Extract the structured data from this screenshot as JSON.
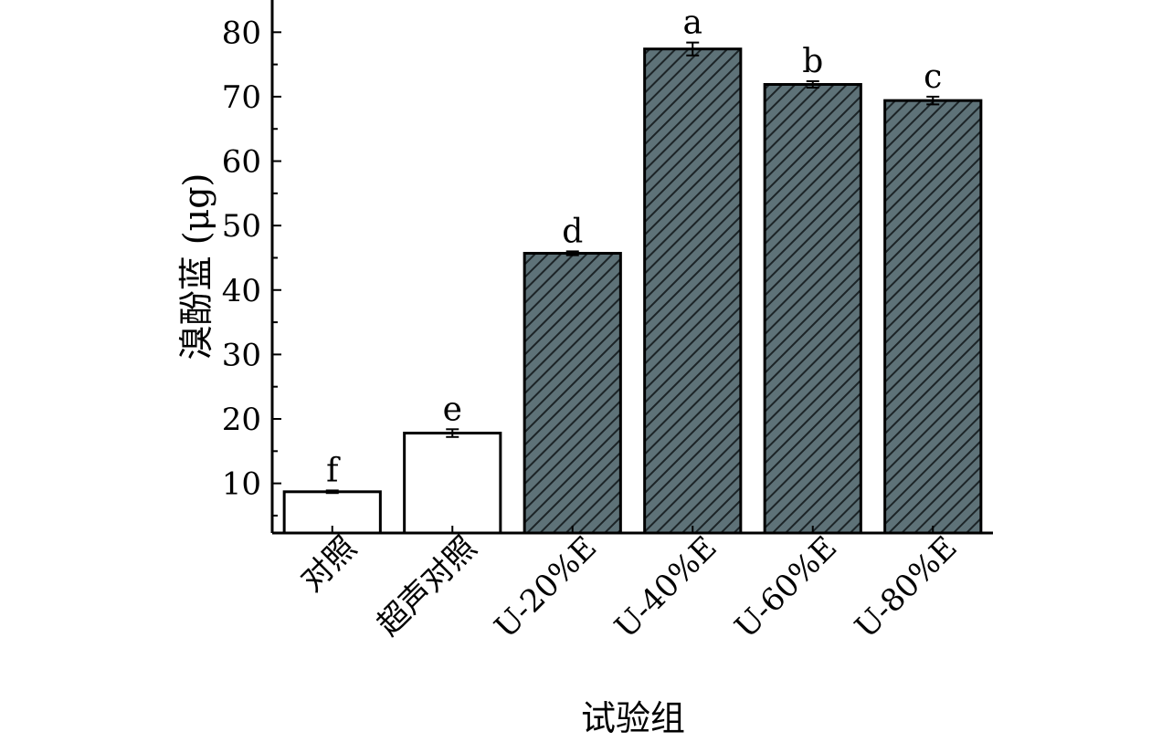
{
  "chart_data": {
    "type": "bar",
    "title": "",
    "xlabel": "试验组",
    "ylabel": "溴酚蓝 (μg)",
    "categories": [
      "对照",
      "超声对照",
      "U-20%E",
      "U-40%E",
      "U-60%E",
      "U-80%E"
    ],
    "values": [
      8.7,
      17.8,
      45.7,
      77.4,
      71.9,
      69.4
    ],
    "errors": [
      0.2,
      0.6,
      0.3,
      1.0,
      0.5,
      0.6
    ],
    "significance_letters": [
      "f",
      "e",
      "d",
      "a",
      "b",
      "c"
    ],
    "bar_styles": [
      "plain",
      "plain",
      "hatched",
      "hatched",
      "hatched",
      "hatched"
    ],
    "yticks": [
      10,
      20,
      30,
      40,
      50,
      60,
      70,
      80
    ],
    "ylim": [
      2.3,
      85
    ],
    "grid": false,
    "colors": {
      "plain_fill": "#ffffff",
      "hatched_fill": "#5e7278",
      "hatch_line": "#1c2427",
      "outline": "#000000"
    }
  }
}
